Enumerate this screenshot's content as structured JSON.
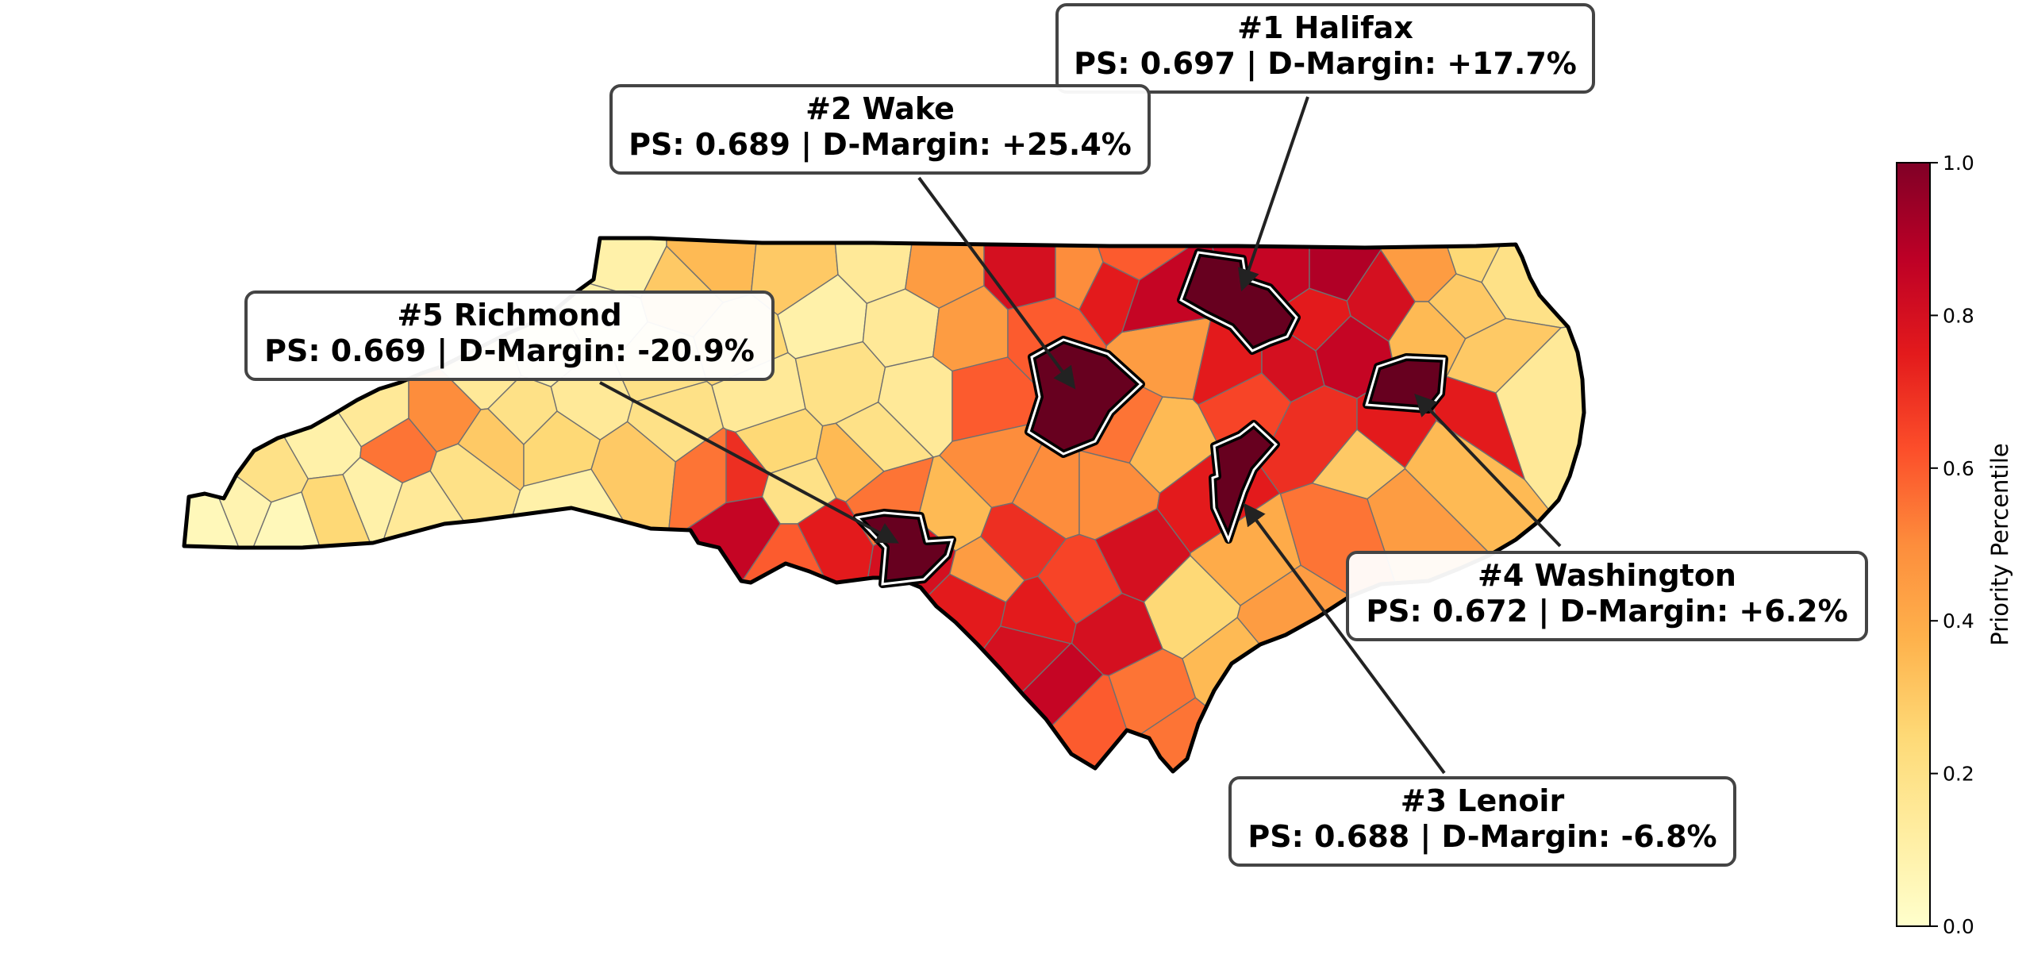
{
  "map": {
    "subject": "North Carolina counties",
    "highlight_color": "#67001f",
    "callouts": [
      {
        "rank": "#1",
        "county": "Halifax",
        "title": "#1 Halifax",
        "subtitle": "PS: 0.697 | D-Margin: +17.7%"
      },
      {
        "rank": "#2",
        "county": "Wake",
        "title": "#2 Wake",
        "subtitle": "PS: 0.689 | D-Margin: +25.4%"
      },
      {
        "rank": "#3",
        "county": "Lenoir",
        "title": "#3 Lenoir",
        "subtitle": "PS: 0.688 | D-Margin: -6.8%"
      },
      {
        "rank": "#4",
        "county": "Washington",
        "title": "#4 Washington",
        "subtitle": "PS: 0.672 | D-Margin: +6.2%"
      },
      {
        "rank": "#5",
        "county": "Richmond",
        "title": "#5 Richmond",
        "subtitle": "PS: 0.669 | D-Margin: -20.9%"
      }
    ]
  },
  "colorbar": {
    "label": "Priority Percentile",
    "ticks": [
      "0.0",
      "0.2",
      "0.4",
      "0.6",
      "0.8",
      "1.0"
    ],
    "colormap": [
      "#ffffcc",
      "#ffeda0",
      "#fed976",
      "#feb24c",
      "#fd8d3c",
      "#fc4e2a",
      "#e31a1c",
      "#bd0026",
      "#800026"
    ]
  }
}
